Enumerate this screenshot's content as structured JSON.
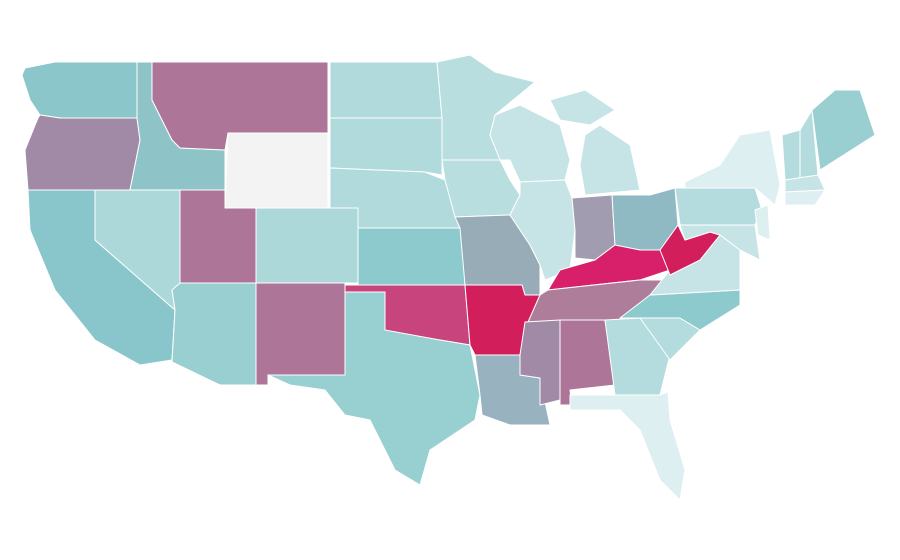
{
  "map": {
    "region_colors": [
      "#8ac6ca",
      "#a08aa5",
      "#8ec4c8",
      "#ad7698",
      "#f3f3f4",
      "#88c6cb",
      "#acd8d9",
      "#ad7698",
      "#9acfd2",
      "#acd8d9",
      "#ad7698",
      "#b0dadc",
      "#b0dadc",
      "#b0dadc",
      "#8ccacd",
      "#c8447c",
      "#98cfd1",
      "#b8dee0",
      "#b8dee0",
      "#98acb8",
      "#d31e5c",
      "#99b2c0",
      "#c6e3e5",
      "#c6e3e5",
      "#c6e3e5",
      "#a19caf",
      "#8fb9c3",
      "#d8206a",
      "#ad7d9a",
      "#a08aa5",
      "#ad7698",
      "#b4dcde",
      "#ddeff1",
      "#b4dcde",
      "#8ccacd",
      "#c6e3e5",
      "#d31e5c",
      "#b4dcde",
      "#ddeff1",
      "#ddeff1",
      "#c6e3e5",
      "#b4dcde",
      "#b4dcde",
      "#9acfd2",
      "#c6e3e5",
      "#ddeff1"
    ]
  }
}
